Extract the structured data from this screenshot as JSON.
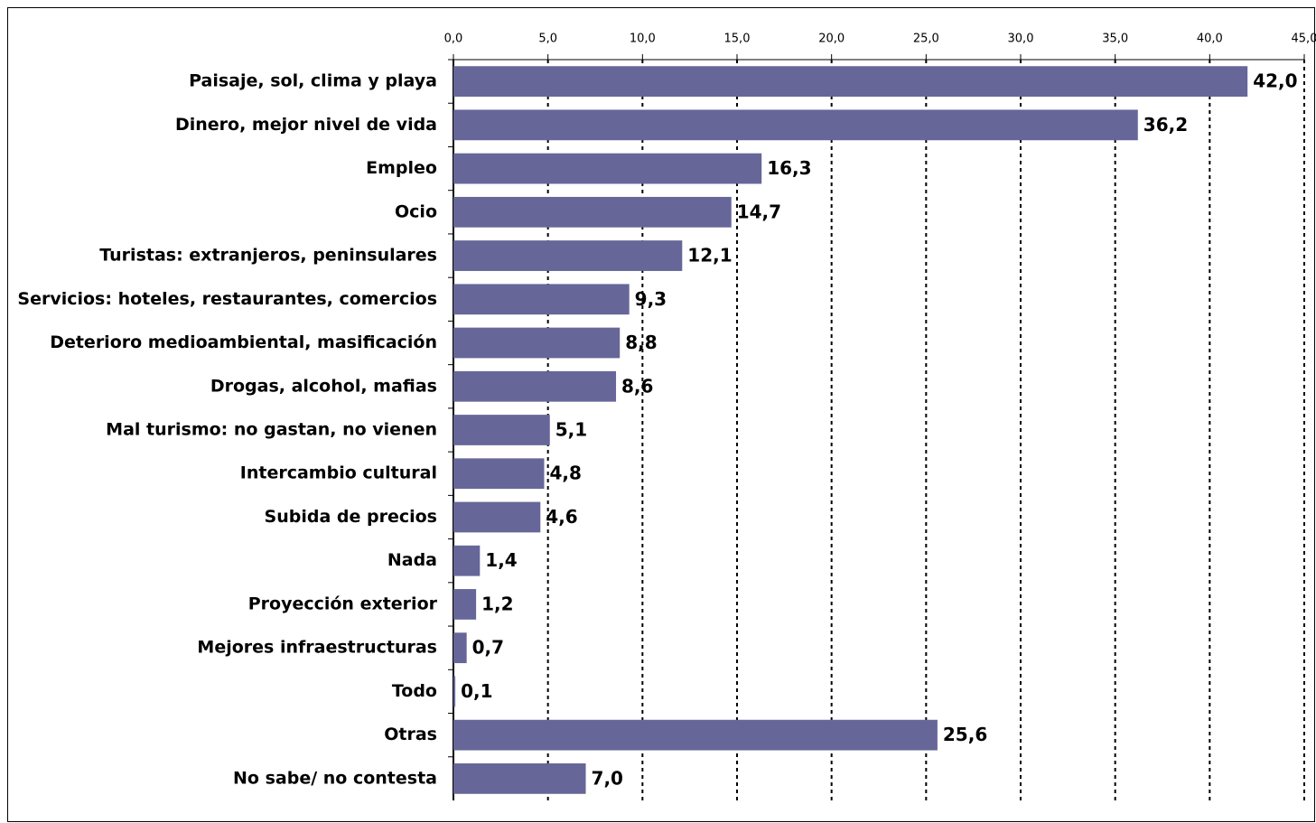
{
  "chart_data": {
    "type": "hbar",
    "color": "#666699",
    "grid": true,
    "categories": [
      "Paisaje, sol, clima y playa",
      "Dinero, mejor nivel de vida",
      "Empleo",
      "Ocio",
      "Turistas: extranjeros, peninsulares",
      "Servicios: hoteles, restaurantes, comercios",
      "Deterioro medioambiental, masificación",
      "Drogas, alcohol, mafias",
      "Mal turismo: no gastan, no vienen",
      "Intercambio cultural",
      "Subida de precios",
      "Nada",
      "Proyección exterior",
      "Mejores infraestructuras",
      "Todo",
      "Otras",
      "No sabe/ no contesta"
    ],
    "values": [
      42.0,
      36.2,
      16.3,
      14.7,
      12.1,
      9.3,
      8.8,
      8.6,
      5.1,
      4.8,
      4.6,
      1.4,
      1.2,
      0.7,
      0.1,
      25.6,
      7.0
    ],
    "value_labels": [
      "42,0",
      "36,2",
      "16,3",
      "14,7",
      "12,1",
      "9,3",
      "8,8",
      "8,6",
      "5,1",
      "4,8",
      "4,6",
      "1,4",
      "1,2",
      "0,7",
      "0,1",
      "25,6",
      "7,0"
    ],
    "xlim": [
      0,
      45
    ],
    "xticks": [
      {
        "value": 0,
        "label": "0,0"
      },
      {
        "value": 5,
        "label": "5,0"
      },
      {
        "value": 10,
        "label": "10,0"
      },
      {
        "value": 15,
        "label": "15,0"
      },
      {
        "value": 20,
        "label": "20,0"
      },
      {
        "value": 25,
        "label": "25,0"
      },
      {
        "value": 30,
        "label": "30,0"
      },
      {
        "value": 35,
        "label": "35,0"
      },
      {
        "value": 40,
        "label": "40,0"
      },
      {
        "value": 45,
        "label": "45,0"
      }
    ]
  }
}
